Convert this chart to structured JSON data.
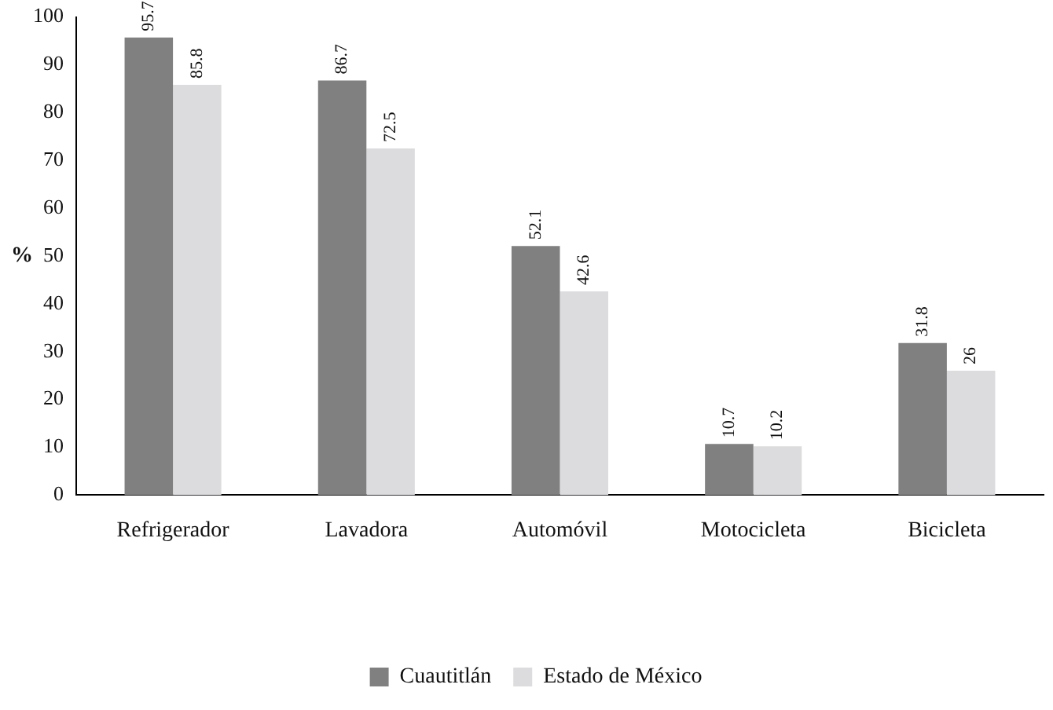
{
  "chart_data": {
    "type": "bar",
    "ylabel": "%",
    "categories": [
      "Refrigerador",
      "Lavadora",
      "Automóvil",
      "Motocicleta",
      "Bicicleta"
    ],
    "series": [
      {
        "name": "Cuautitlán",
        "color": "#808080",
        "values": [
          95.7,
          86.7,
          52.1,
          10.7,
          31.8
        ]
      },
      {
        "name": "Estado de México",
        "color": "#dcdcde",
        "values": [
          85.8,
          72.5,
          42.6,
          10.2,
          26
        ]
      }
    ],
    "ylim": [
      0,
      100
    ],
    "yticks": [
      0,
      10,
      20,
      30,
      40,
      50,
      60,
      70,
      80,
      90,
      100
    ],
    "grid": false,
    "legend": "bottom",
    "data_labels": true
  }
}
